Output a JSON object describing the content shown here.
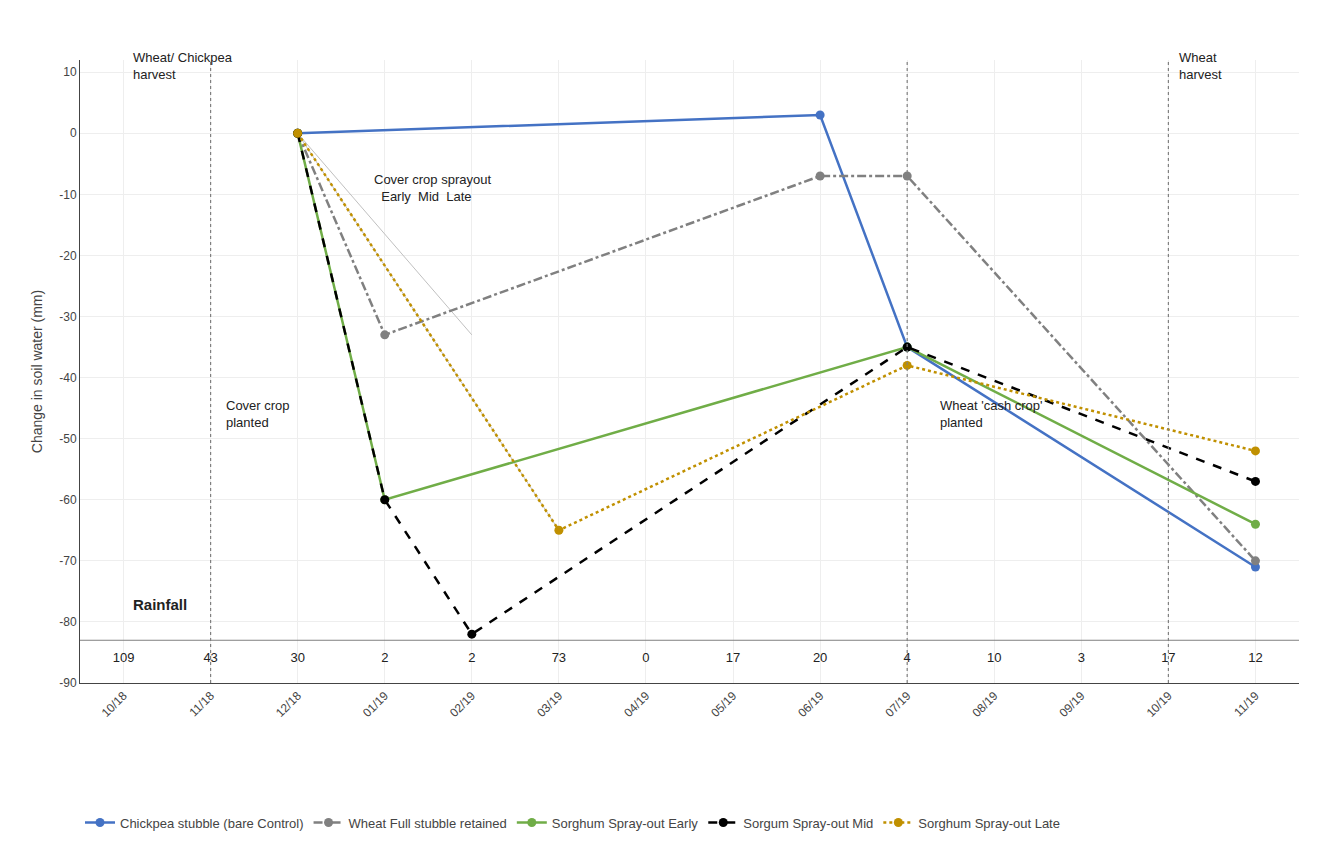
{
  "chart_data": {
    "type": "line",
    "categories": [
      "10/18",
      "11/18",
      "12/18",
      "01/19",
      "02/19",
      "03/19",
      "04/19",
      "05/19",
      "06/19",
      "07/19",
      "08/19",
      "09/19",
      "10/19",
      "11/19"
    ],
    "ylabel": "Change in soil water (mm)",
    "ylim": [
      -90,
      12
    ],
    "yticks": [
      -90,
      -80,
      -70,
      -60,
      -50,
      -40,
      -30,
      -20,
      -10,
      0,
      10
    ],
    "grid": true,
    "legend": "bottom",
    "series": [
      {
        "name": "Chickpea stubble (bare Control)",
        "color": "#4472C4",
        "line_style": "solid",
        "marker": "circle",
        "x": [
          "12/18",
          "06/19",
          "07/19",
          "11/19"
        ],
        "values": [
          0,
          3,
          -35,
          -71
        ]
      },
      {
        "name": "Wheat Full stubble retained",
        "color": "#808080",
        "line_style": "dashdot",
        "marker": "circle",
        "x": [
          "12/18",
          "01/19",
          "06/19",
          "07/19",
          "11/19"
        ],
        "values": [
          0,
          -33,
          -7,
          -7,
          -70
        ]
      },
      {
        "name": "Sorghum Spray-out Early",
        "color": "#70AD47",
        "line_style": "solid",
        "marker": "circle",
        "x": [
          "12/18",
          "01/19",
          "07/19",
          "11/19"
        ],
        "values": [
          0,
          -60,
          -35,
          -64
        ]
      },
      {
        "name": "Sorgum Spray-out Mid",
        "color": "#000000",
        "line_style": "dash",
        "marker": "circle",
        "x": [
          "12/18",
          "01/19",
          "02/19",
          "07/19",
          "11/19"
        ],
        "values": [
          0,
          -60,
          -82,
          -35,
          -57
        ]
      },
      {
        "name": "Sorghum Spray-out Late",
        "color": "#C09000",
        "line_style": "dot",
        "marker": "circle",
        "x": [
          "12/18",
          "03/19",
          "07/19",
          "11/19"
        ],
        "values": [
          0,
          -65,
          -38,
          -52
        ]
      }
    ],
    "guide_lines": [
      {
        "x": [
          "12/18",
          "01/19"
        ],
        "values": [
          0,
          -60
        ],
        "color": "#c0c0c0"
      },
      {
        "x": [
          "12/18",
          "02/19"
        ],
        "values": [
          0,
          -33
        ],
        "color": "#c0c0c0"
      },
      {
        "x": [
          "12/18",
          "03/19"
        ],
        "values": [
          0,
          -65
        ],
        "color": "#c0c0c0"
      }
    ],
    "vlines": [
      "11/18",
      "07/19",
      "10/19"
    ],
    "rainfall": [
      109,
      43,
      30,
      2,
      2,
      73,
      0,
      17,
      20,
      4,
      10,
      3,
      17,
      12
    ],
    "annotations": [
      {
        "text": "Wheat/ Chickpea\nharvest"
      },
      {
        "text": "Cover crop\nplanted"
      },
      {
        "text": "Cover crop sprayout\n  Early  Mid  Late"
      },
      {
        "text": "Wheat 'cash crop'\nplanted"
      },
      {
        "text": "Wheat\nharvest"
      },
      {
        "text": "Rainfall"
      }
    ]
  }
}
